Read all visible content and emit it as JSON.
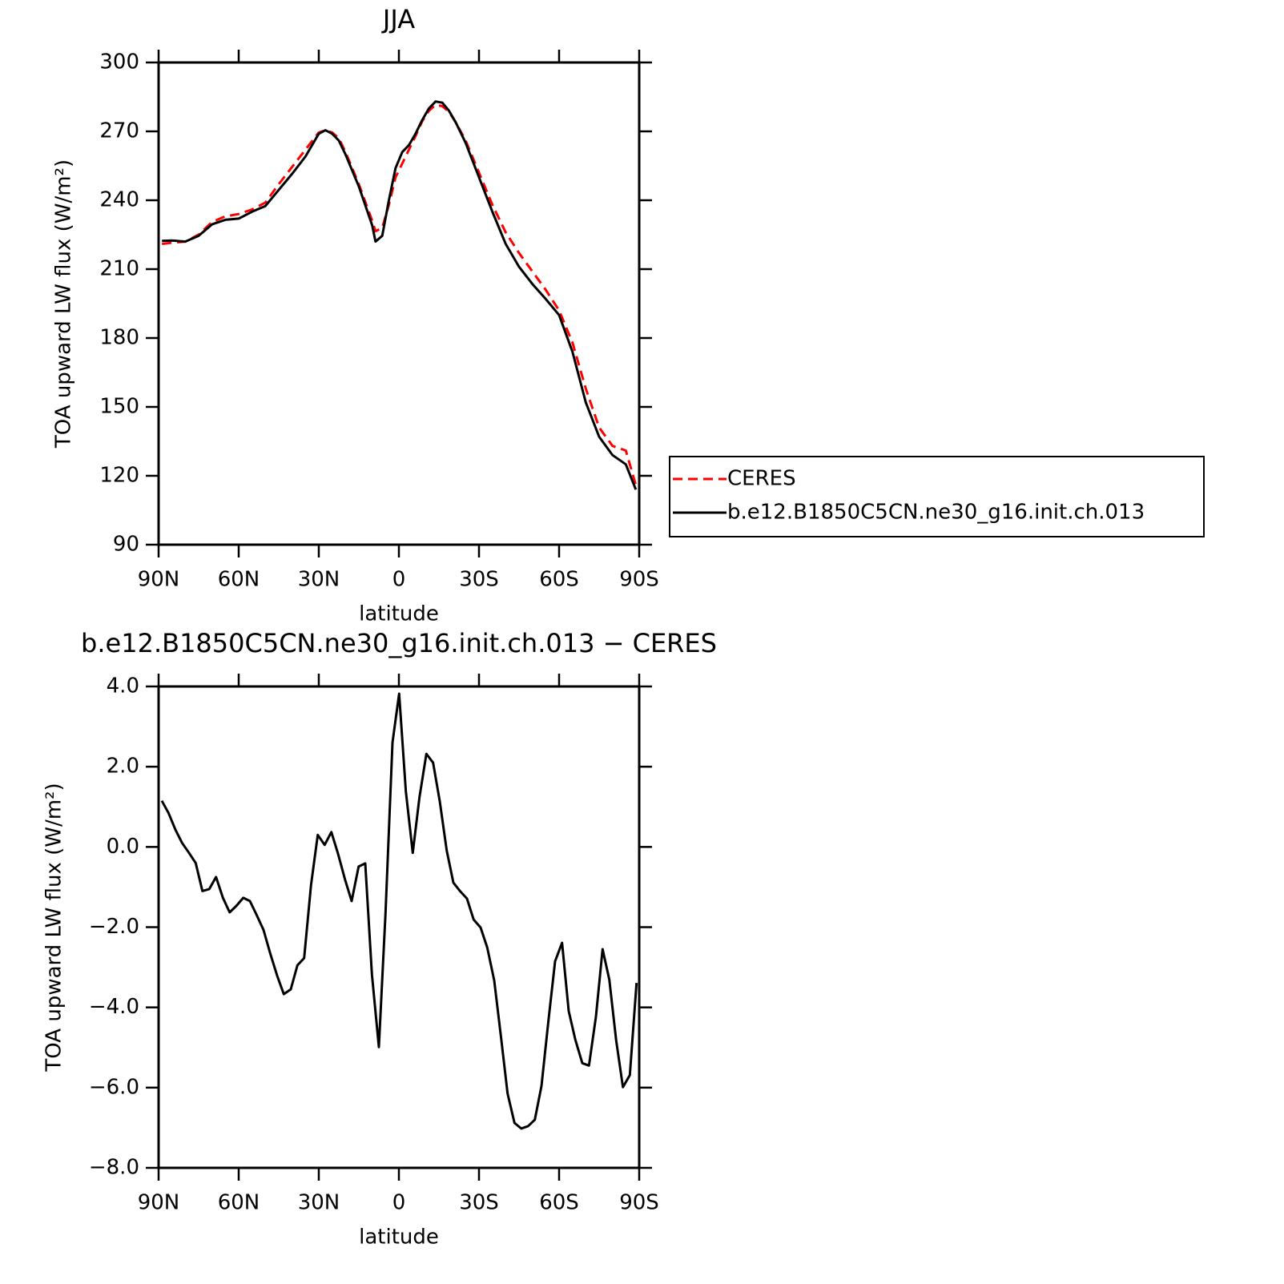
{
  "chart_data": [
    {
      "type": "line",
      "title": "JJA",
      "x_label": "latitude",
      "y_label": "TOA upward LW flux (W/m²)",
      "x": [
        88.75,
        85,
        80,
        75,
        70,
        65,
        60,
        55,
        50,
        45,
        40,
        35,
        30,
        27.5,
        25,
        22.5,
        20,
        15,
        10,
        8.75,
        6.25,
        3.75,
        1.25,
        -1.25,
        -3.75,
        -6.25,
        -8.75,
        -11.25,
        -13.75,
        -16.25,
        -18.75,
        -21.25,
        -25,
        -30,
        -35,
        -40,
        -45,
        -50,
        -55,
        -60,
        -65,
        -70,
        -75,
        -80,
        -85,
        -88.75
      ],
      "series": [
        {
          "name": "CERES",
          "color": "#ff0000",
          "line_style": "dashed",
          "values": [
            221,
            221.5,
            222,
            225,
            230.5,
            233,
            234,
            236,
            239,
            247,
            254.5,
            262,
            269.5,
            270.5,
            269.5,
            267,
            261,
            247,
            231,
            226.5,
            228,
            238,
            250,
            256,
            262,
            268,
            274.5,
            279,
            281.5,
            281,
            278.5,
            274,
            266,
            252,
            238,
            226,
            217,
            209,
            201,
            192,
            178,
            158,
            141,
            133,
            131,
            116
          ]
        },
        {
          "name": "b.e12.B1850C5CN.ne30_g16.init.ch.013",
          "color": "#000000",
          "line_style": "solid",
          "values": [
            222.3,
            222.5,
            222,
            224.5,
            229.5,
            231.5,
            232,
            235,
            237.5,
            244.5,
            251.5,
            259,
            269,
            270.5,
            269,
            266,
            260,
            246,
            229,
            222,
            224.5,
            240,
            254,
            261,
            264,
            269,
            275,
            280,
            283,
            282.5,
            279,
            274,
            265,
            250,
            235,
            221,
            211,
            203.5,
            197,
            190,
            174,
            152,
            137,
            129,
            125,
            114
          ]
        }
      ],
      "xlim": [
        90,
        -90
      ],
      "xticks": [
        {
          "value": 90,
          "label": "90N"
        },
        {
          "value": 60,
          "label": "60N"
        },
        {
          "value": 30,
          "label": "30N"
        },
        0,
        {
          "value": -30,
          "label": "30S"
        },
        {
          "value": -60,
          "label": "60S"
        },
        {
          "value": -90,
          "label": "90S"
        }
      ],
      "ylim": [
        90,
        300
      ],
      "yticks": [
        90,
        120,
        150,
        180,
        210,
        240,
        270,
        300
      ],
      "legend": "outside-right"
    },
    {
      "type": "line",
      "title": "b.e12.B1850C5CN.ne30_g16.init.ch.013 − CERES",
      "x_label": "latitude",
      "y_label": "TOA upward LW flux (W/m²)",
      "x": [
        88.8,
        86.3,
        83.7,
        81.2,
        78.6,
        76.1,
        73.6,
        71.0,
        68.5,
        65.9,
        63.4,
        60.9,
        58.3,
        55.8,
        53.2,
        50.7,
        48.2,
        45.6,
        43.1,
        40.5,
        38.0,
        35.5,
        32.9,
        30.4,
        27.8,
        25.3,
        22.8,
        20.2,
        17.7,
        15.1,
        12.6,
        10.1,
        7.5,
        5.0,
        2.4,
        -0.1,
        -2.6,
        -5.2,
        -7.7,
        -10.3,
        -12.8,
        -15.3,
        -17.9,
        -20.4,
        -23.0,
        -25.5,
        -28.0,
        -30.6,
        -33.1,
        -35.7,
        -38.2,
        -40.7,
        -43.3,
        -45.8,
        -48.4,
        -50.9,
        -53.4,
        -56.0,
        -58.5,
        -61.1,
        -63.6,
        -66.1,
        -68.7,
        -71.2,
        -73.8,
        -76.3,
        -78.8,
        -81.4,
        -83.9,
        -86.5,
        -89.0
      ],
      "values": [
        1.15,
        0.85,
        0.43,
        0.1,
        -0.15,
        -0.4,
        -1.1,
        -1.05,
        -0.75,
        -1.27,
        -1.63,
        -1.47,
        -1.27,
        -1.35,
        -1.71,
        -2.07,
        -2.65,
        -3.21,
        -3.67,
        -3.55,
        -2.95,
        -2.77,
        -0.95,
        0.3,
        0.05,
        0.37,
        -0.17,
        -0.81,
        -1.35,
        -0.49,
        -0.41,
        -3.17,
        -4.99,
        -1.65,
        2.6,
        3.82,
        1.38,
        -0.15,
        1.24,
        2.32,
        2.1,
        1.14,
        -0.09,
        -0.89,
        -1.11,
        -1.29,
        -1.81,
        -2.01,
        -2.51,
        -3.33,
        -4.71,
        -6.15,
        -6.88,
        -7.02,
        -6.96,
        -6.8,
        -5.96,
        -4.33,
        -2.85,
        -2.39,
        -4.09,
        -4.81,
        -5.39,
        -5.45,
        -4.23,
        -2.55,
        -3.31,
        -4.83,
        -5.99,
        -5.69,
        -3.39
      ],
      "color": "#000000",
      "xlim": [
        90,
        -90
      ],
      "xticks": [
        {
          "value": 90,
          "label": "90N"
        },
        {
          "value": 60,
          "label": "60N"
        },
        {
          "value": 30,
          "label": "30N"
        },
        0,
        {
          "value": -30,
          "label": "30S"
        },
        {
          "value": -60,
          "label": "60S"
        },
        {
          "value": -90,
          "label": "90S"
        }
      ],
      "ylim": [
        -8,
        4
      ],
      "yticks": [
        {
          "value": -8,
          "label": "−8.0"
        },
        {
          "value": -6,
          "label": "−6.0"
        },
        {
          "value": -4,
          "label": "−4.0"
        },
        {
          "value": -2,
          "label": "−2.0"
        },
        {
          "value": 0,
          "label": "0.0"
        },
        {
          "value": 2,
          "label": "2.0"
        },
        {
          "value": 4,
          "label": "4.0"
        }
      ]
    }
  ]
}
